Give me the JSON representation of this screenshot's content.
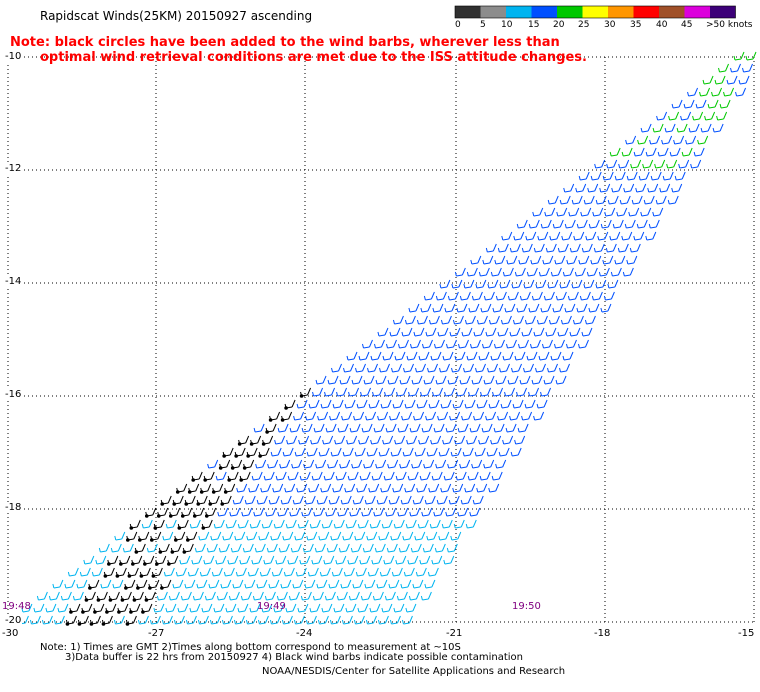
{
  "header": {
    "title": "Rapidscat Winds(25KM) 20150927 ascending",
    "note_line1": "Note: black circles have been added to the wind barbs, wherever less than",
    "note_line2": "optimal wind retrieval conditions are met due to the ISS attitude changes."
  },
  "legend": {
    "labels": [
      "0",
      "5",
      "10",
      "15",
      "20",
      "25",
      "30",
      "35",
      "40",
      "45",
      ">50 knots"
    ],
    "colors": [
      "#303030",
      "#8c8c8c",
      "#00b4f0",
      "#0050ff",
      "#00c800",
      "#ffff00",
      "#ff9600",
      "#ff0000",
      "#a05028",
      "#dc00dc",
      "#3c0078"
    ]
  },
  "axes": {
    "lat_labels": [
      "-10",
      "-12",
      "-14",
      "-16",
      "-18",
      "-20"
    ],
    "lon_labels": [
      "-30",
      "-27",
      "-24",
      "-21",
      "-18",
      "-15"
    ]
  },
  "times": [
    "19:48",
    "19:49",
    "19:50"
  ],
  "footer": {
    "line1": "Note: 1) Times are GMT 2)Times along bottom correspond to measurement at ~10S",
    "line2": "3)Data buffer is 22 hrs from 20150927 4) Black wind barbs indicate possible contamination",
    "credit": "NOAA/NESDIS/Center for Satellite Applications and Research"
  },
  "colors": {
    "barb_cyan": "#00b4f0",
    "barb_blue": "#0050ff",
    "barb_green": "#00c800",
    "barb_black": "#000000",
    "time_label": "#800080",
    "note": "#ff0000"
  }
}
